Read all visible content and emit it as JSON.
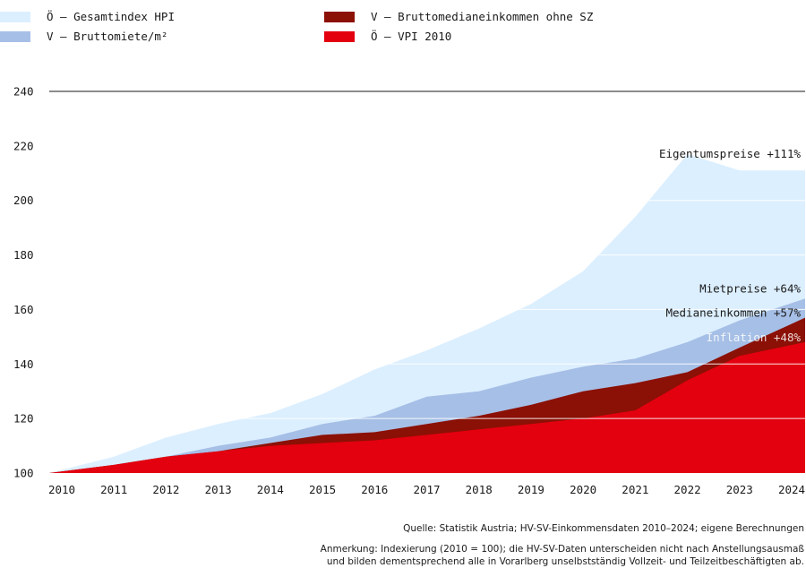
{
  "colors": {
    "hpi": "#dcefff",
    "rent": "#a6bfe6",
    "income": "#8b1005",
    "cpi": "#e3000f",
    "grid": "#ffffff",
    "text": "#1a1a1a"
  },
  "legend": [
    {
      "label": "Ö – Gesamtindex HPI",
      "color": "#dcefff"
    },
    {
      "label": "V – Bruttomiete/m²",
      "color": "#a6bfe6"
    },
    {
      "label": "V – Bruttomedianeinkommen ohne SZ",
      "color": "#8b1005"
    },
    {
      "label": "Ö – VPI 2010",
      "color": "#e3000f"
    }
  ],
  "chart_data": {
    "type": "area",
    "x": [
      "2010",
      "2011",
      "2012",
      "2013",
      "2014",
      "2015",
      "2016",
      "2017",
      "2018",
      "2019",
      "2020",
      "2021",
      "2022",
      "2023",
      "2024"
    ],
    "ylim": [
      100,
      240
    ],
    "yticks": [
      100,
      120,
      140,
      160,
      180,
      200,
      220,
      240
    ],
    "series": [
      {
        "name": "Ö – Gesamtindex HPI",
        "values": [
          100,
          106,
          113,
          118,
          122,
          129,
          138,
          145,
          153,
          162,
          174,
          194,
          217,
          211,
          211
        ]
      },
      {
        "name": "V – Bruttomiete/m²",
        "values": [
          100,
          103,
          106,
          110,
          113,
          118,
          121,
          128,
          130,
          135,
          139,
          142,
          148,
          156,
          164
        ]
      },
      {
        "name": "V – Bruttomedianeinkommen ohne SZ",
        "values": [
          100,
          103,
          106,
          108,
          111,
          114,
          115,
          118,
          121,
          125,
          130,
          133,
          137,
          146,
          157
        ]
      },
      {
        "name": "Ö – VPI 2010",
        "values": [
          100,
          103,
          106,
          108,
          110,
          111,
          112,
          114,
          116,
          118,
          120,
          123,
          134,
          143,
          148
        ]
      }
    ],
    "annotations": [
      {
        "text": "Eigentumspreise +111%",
        "x": "2024",
        "y": 211
      },
      {
        "text": "Mietpreise +64%",
        "x": "2024",
        "y": 164
      },
      {
        "text": "Medianeinkommen +57%",
        "x": "2024",
        "y": 157
      },
      {
        "text": "Inflation +48%",
        "x": "2024",
        "y": 148
      }
    ]
  },
  "footer": {
    "source": "Quelle: Statistik Austria; HV-SV-Einkommensdaten 2010–2024; eigene Berechnungen",
    "note_line1": "Anmerkung: Indexierung (2010 = 100); die HV-SV-Daten unterscheiden nicht nach Anstellungsausmaß",
    "note_line2": "und bilden dementsprechend alle in Vorarlberg unselbstständig Vollzeit- und Teilzeitbeschäftigten ab."
  }
}
